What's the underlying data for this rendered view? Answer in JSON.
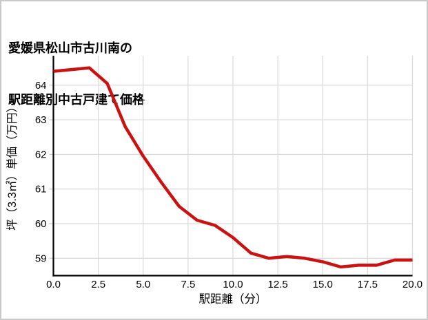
{
  "page": {
    "background": "#ffffff",
    "frame_border_color": "#c9c9c9"
  },
  "title": {
    "line1": "愛媛県松山市古川南の",
    "line2": "駅距離別中古戸建て価格"
  },
  "chart_data": {
    "type": "line",
    "title": "愛媛県松山市古川南の駅距離別中古戸建て価格",
    "xlabel": "駅距離（分）",
    "ylabel": "坪（3.3㎡）単価（万円）",
    "x": [
      0,
      1,
      2,
      3,
      4,
      5,
      6,
      7,
      8,
      9,
      10,
      11,
      12,
      13,
      14,
      15,
      16,
      17,
      18,
      19,
      20
    ],
    "y": [
      64.4,
      64.45,
      64.5,
      64.05,
      62.8,
      61.95,
      61.2,
      60.5,
      60.1,
      59.95,
      59.6,
      59.15,
      59.0,
      59.05,
      59.0,
      58.9,
      58.75,
      58.8,
      58.8,
      58.95,
      58.95
    ],
    "xlim": [
      0,
      20
    ],
    "ylim": [
      58.5,
      64.85
    ],
    "xticks": [
      0,
      2.5,
      5,
      7.5,
      10,
      12.5,
      15,
      17.5,
      20
    ],
    "xtick_labels": [
      "0.0",
      "2.5",
      "5.0",
      "7.5",
      "10.0",
      "12.5",
      "15.0",
      "17.5",
      "20.0"
    ],
    "yticks": [
      59,
      60,
      61,
      62,
      63,
      64
    ],
    "ytick_labels": [
      "59",
      "60",
      "61",
      "62",
      "63",
      "64"
    ],
    "grid": true,
    "legend": false,
    "line_color": "#cc1111",
    "line_width": 4.5,
    "grid_color": "#d9d9d9",
    "spine_color": "#000000",
    "tick_color": "#cfcfcf"
  }
}
